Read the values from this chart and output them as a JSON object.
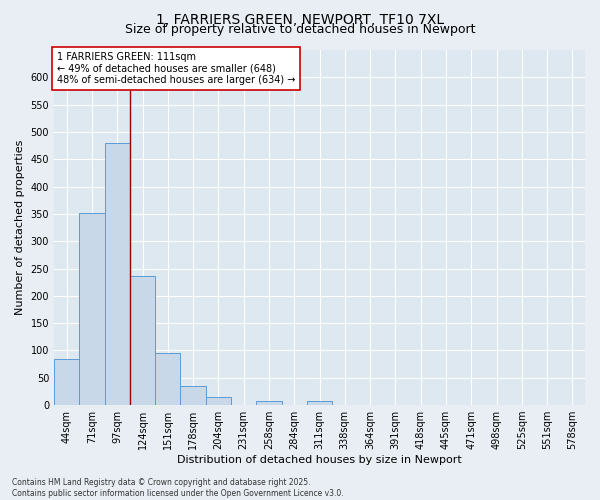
{
  "title1": "1, FARRIERS GREEN, NEWPORT, TF10 7XL",
  "title2": "Size of property relative to detached houses in Newport",
  "xlabel": "Distribution of detached houses by size in Newport",
  "ylabel": "Number of detached properties",
  "bar_color": "#c8d8e8",
  "bar_edge_color": "#5b9bd5",
  "categories": [
    "44sqm",
    "71sqm",
    "97sqm",
    "124sqm",
    "151sqm",
    "178sqm",
    "204sqm",
    "231sqm",
    "258sqm",
    "284sqm",
    "311sqm",
    "338sqm",
    "364sqm",
    "391sqm",
    "418sqm",
    "445sqm",
    "471sqm",
    "498sqm",
    "525sqm",
    "551sqm",
    "578sqm"
  ],
  "values": [
    84,
    352,
    480,
    236,
    96,
    35,
    15,
    0,
    7,
    0,
    7,
    0,
    0,
    0,
    0,
    0,
    0,
    0,
    0,
    0,
    0
  ],
  "ylim": [
    0,
    650
  ],
  "yticks": [
    0,
    50,
    100,
    150,
    200,
    250,
    300,
    350,
    400,
    450,
    500,
    550,
    600
  ],
  "red_line_x": 2.5,
  "annotation_text": "1 FARRIERS GREEN: 111sqm\n← 49% of detached houses are smaller (648)\n48% of semi-detached houses are larger (634) →",
  "annotation_box_color": "#ffffff",
  "annotation_box_edge_color": "#cc0000",
  "red_line_color": "#990000",
  "bg_color": "#e8eef4",
  "plot_bg_color": "#dde8f0",
  "footer_text": "Contains HM Land Registry data © Crown copyright and database right 2025.\nContains public sector information licensed under the Open Government Licence v3.0.",
  "grid_color": "#ffffff",
  "title_fontsize": 10,
  "subtitle_fontsize": 9,
  "tick_fontsize": 7,
  "label_fontsize": 8,
  "annotation_fontsize": 7,
  "footer_fontsize": 5.5
}
